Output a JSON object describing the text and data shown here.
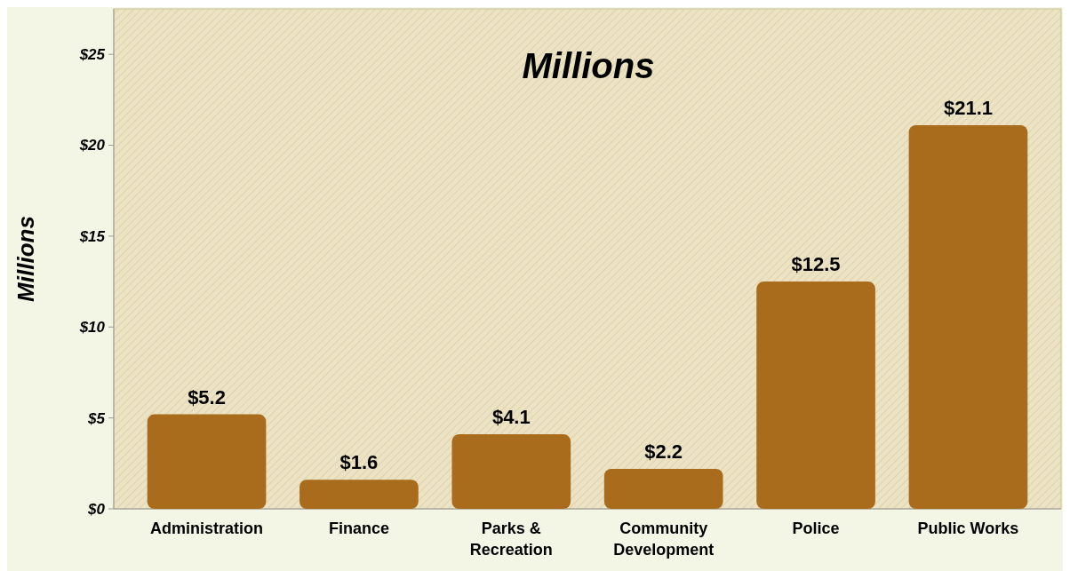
{
  "chart_data": {
    "type": "bar",
    "title": "Millions",
    "ylabel": "Millions",
    "categories": [
      "Administration",
      "Finance",
      "Parks & Recreation",
      "Community Development",
      "Police",
      "Public Works"
    ],
    "values": [
      5.2,
      1.6,
      4.1,
      2.2,
      12.5,
      21.1
    ],
    "color": "#a86c1c",
    "ylim": [
      0,
      27.5
    ],
    "yticks": [
      {
        "value": 0,
        "label": "$0"
      },
      {
        "value": 5,
        "label": "$5"
      },
      {
        "value": 10,
        "label": "$10"
      },
      {
        "value": 15,
        "label": "$15"
      },
      {
        "value": 20,
        "label": "$20"
      },
      {
        "value": 25,
        "label": "$25"
      }
    ],
    "value_labels": [
      "$5.2",
      "$1.6",
      "$4.1",
      "$2.2",
      "$12.5",
      "$21.1"
    ],
    "grid": false
  }
}
